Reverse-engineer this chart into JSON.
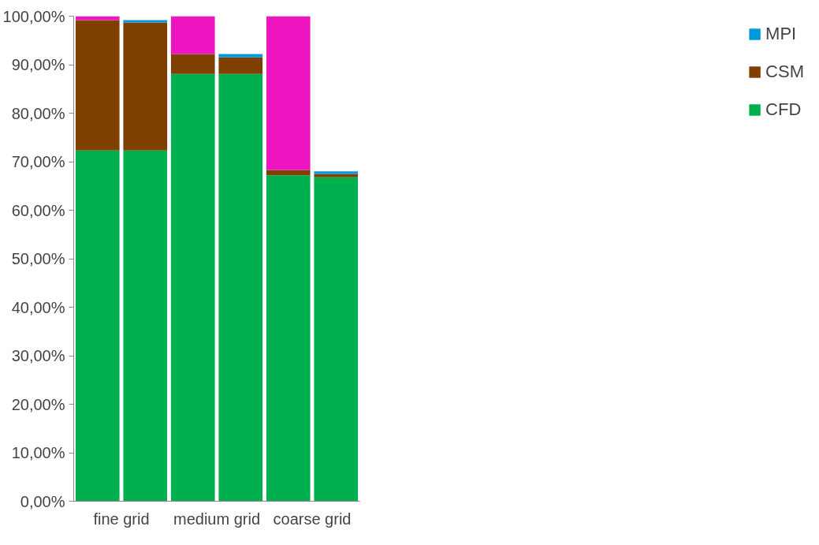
{
  "chart_data": {
    "type": "bar",
    "stacked": true,
    "categories": [
      "fine grid",
      null,
      "medium grid",
      null,
      "coarse grid",
      null
    ],
    "series": [
      {
        "name": "CFD",
        "color": "#00b050",
        "values": [
          72.3,
          72.3,
          88.1,
          88.1,
          67.2,
          66.8
        ]
      },
      {
        "name": "CSM",
        "color": "#7f3f00",
        "values": [
          26.9,
          26.4,
          4.1,
          3.4,
          1.1,
          0.7
        ]
      },
      {
        "name": "MPI",
        "color": "#0099dc",
        "values": [
          0,
          0.5,
          0,
          0.7,
          0,
          0.5
        ]
      },
      {
        "color": "#ee14c0",
        "values": [
          0.8,
          0,
          7.8,
          0,
          31.7,
          0
        ]
      }
    ],
    "ylim": [
      0,
      100
    ],
    "yticks": [
      {
        "value": 0,
        "label": "0,00%"
      },
      {
        "value": 10,
        "label": "10,00%"
      },
      {
        "value": 20,
        "label": "20,00%"
      },
      {
        "value": 30,
        "label": "30,00%"
      },
      {
        "value": 40,
        "label": "40,00%"
      },
      {
        "value": 50,
        "label": "50,00%"
      },
      {
        "value": 60,
        "label": "60,00%"
      },
      {
        "value": 70,
        "label": "70,00%"
      },
      {
        "value": 80,
        "label": "80,00%"
      },
      {
        "value": 90,
        "label": "90,00%"
      },
      {
        "value": 100,
        "label": "100,00%"
      }
    ],
    "grid": false,
    "legend": "right"
  }
}
